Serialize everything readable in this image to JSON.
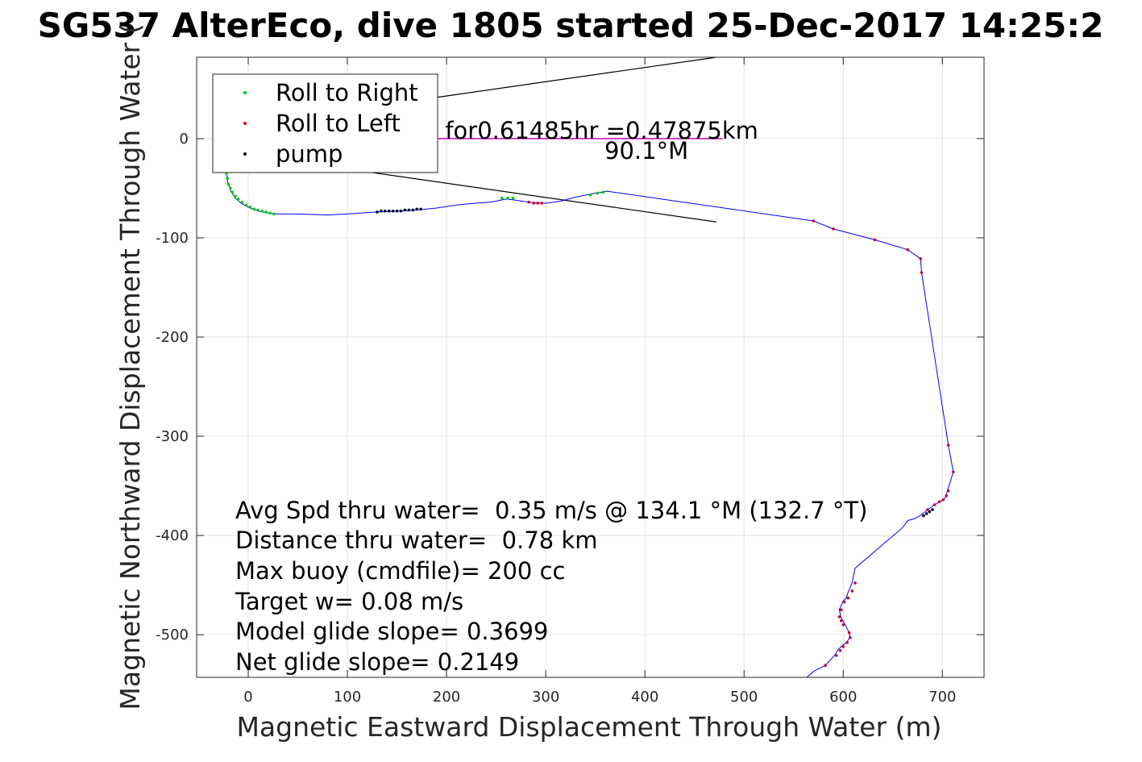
{
  "chart_data": {
    "type": "line",
    "title": "SG537 AlterEco, dive 1805 started 25-Dec-2017 14:25:2",
    "xlabel": "Magnetic Eastward Displacement Through Water (m)",
    "ylabel": "Magnetic Northward Displacement Through Water (",
    "xlim": [
      -52,
      742
    ],
    "ylim": [
      -543,
      82
    ],
    "xticks": [
      0,
      100,
      200,
      300,
      400,
      500,
      600,
      700
    ],
    "yticks": [
      -500,
      -400,
      -300,
      -200,
      -100,
      0
    ],
    "grid": true,
    "legend_position": "top-left",
    "legend": [
      {
        "label": "Roll to Right",
        "color": "#00cc00"
      },
      {
        "label": "Roll to Left",
        "color": "#e00000"
      },
      {
        "label": "pump",
        "color": "#000033"
      }
    ],
    "colors": {
      "track": "#0000ff",
      "current_vector": "#cc00cc",
      "fan_lines": "#000000",
      "roll_left_marker": "#cc0033",
      "pump_marker": "#000033",
      "roll_right_marker": "#00cc00"
    },
    "annotation_currents": "s for0.61485hr =0.47875km",
    "annotation_heading": "90.1°M",
    "stats": [
      "Avg Spd thru water=  0.35 m/s @ 134.1 °M (132.7 °T)",
      "Distance thru water=  0.78 km",
      "Max buoy (cmdfile)= 200 cc",
      "Target w= 0.08 m/s",
      "Model glide slope= 0.3699",
      "Net glide slope= 0.2149"
    ],
    "current_vector": {
      "x": [
        -30,
        478
      ],
      "y": [
        0,
        0
      ]
    },
    "fan_lines": [
      {
        "x": [
          -30,
          472
        ],
        "y": [
          10,
          82
        ]
      },
      {
        "x": [
          -30,
          472
        ],
        "y": [
          -12,
          -84
        ]
      }
    ],
    "track": {
      "x": [
        -20,
        -22,
        -21,
        -18,
        -13,
        -6,
        2,
        10,
        20,
        30,
        50,
        80,
        100,
        130,
        150,
        170,
        190,
        210,
        230,
        245,
        260,
        270,
        282,
        292,
        302,
        315,
        330,
        345,
        362,
        570,
        590,
        632,
        665,
        678,
        679,
        706,
        711,
        705,
        703,
        698,
        692,
        680,
        678,
        672,
        665,
        660,
        612,
        609,
        605,
        603,
        600,
        596,
        598,
        602,
        606,
        607,
        603,
        598,
        595,
        592,
        582,
        570,
        561
      ],
      "y": [
        -20,
        -30,
        -42,
        -52,
        -60,
        -66,
        -70,
        -73,
        -75,
        -76,
        -76,
        -77,
        -76,
        -74,
        -73,
        -72,
        -70,
        -67,
        -65,
        -64,
        -61,
        -62,
        -64,
        -65,
        -65,
        -63,
        -59,
        -56,
        -53,
        -83,
        -91,
        -102,
        -112,
        -121,
        -135,
        -309,
        -336,
        -355,
        -362,
        -366,
        -369,
        -378,
        -380,
        -383,
        -385,
        -392,
        -433,
        -448,
        -457,
        -463,
        -466,
        -475,
        -483,
        -490,
        -498,
        -503,
        -508,
        -512,
        -515,
        -520,
        -531,
        -537,
        -545
      ]
    },
    "roll_right_points": {
      "x": [
        -22,
        -21,
        -20,
        -18,
        -16,
        -13,
        -10,
        -6,
        -2,
        2,
        6,
        10,
        14,
        18,
        22,
        26,
        256,
        262,
        267,
        345,
        352,
        358
      ],
      "y": [
        -35,
        -40,
        -46,
        -50,
        -54,
        -58,
        -61,
        -64,
        -67,
        -69,
        -71,
        -72,
        -73,
        -74,
        -75,
        -76,
        -60,
        -60,
        -60,
        -57,
        -55,
        -54
      ]
    },
    "roll_left_points": {
      "x": [
        283,
        288,
        292,
        296,
        570,
        590,
        632,
        665,
        678,
        679,
        706,
        711,
        706,
        704,
        701,
        697,
        692,
        685,
        612,
        609,
        605,
        601,
        598,
        596,
        598,
        600,
        606,
        607,
        604,
        600,
        597,
        593,
        582,
        561
      ],
      "y": [
        -64,
        -65,
        -65,
        -65,
        -83,
        -91,
        -102,
        -112,
        -121,
        -135,
        -309,
        -336,
        -355,
        -360,
        -364,
        -366,
        -369,
        -374,
        -448,
        -456,
        -463,
        -467,
        -475,
        -482,
        -486,
        -490,
        -498,
        -503,
        -508,
        -512,
        -516,
        -521,
        -531,
        -545
      ]
    },
    "pump_points": {
      "x": [
        130,
        134,
        138,
        142,
        146,
        150,
        154,
        158,
        162,
        166,
        170,
        174,
        681,
        684,
        687,
        690
      ],
      "y": [
        -74,
        -73,
        -73,
        -73,
        -73,
        -73,
        -73,
        -72,
        -72,
        -72,
        -71,
        -71,
        -380,
        -378,
        -376,
        -374
      ]
    }
  }
}
